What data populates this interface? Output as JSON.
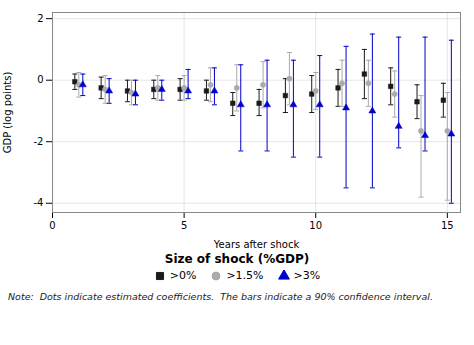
{
  "chart_data": {
    "type": "errorbar",
    "x": [
      1,
      2,
      3,
      4,
      5,
      6,
      7,
      8,
      9,
      10,
      11,
      12,
      13,
      14,
      15
    ],
    "series": [
      {
        "name": ">0%",
        "color": "#1a1a1a",
        "marker": "square",
        "values": [
          -0.05,
          -0.25,
          -0.35,
          -0.3,
          -0.3,
          -0.35,
          -0.75,
          -0.75,
          -0.5,
          -0.45,
          -0.25,
          0.2,
          -0.2,
          -0.7,
          -0.65
        ],
        "lower": [
          -0.3,
          -0.6,
          -0.7,
          -0.6,
          -0.65,
          -0.65,
          -1.15,
          -1.15,
          -1.05,
          -1.05,
          -0.85,
          -0.6,
          -0.8,
          -1.25,
          -1.2
        ],
        "upper": [
          0.2,
          0.1,
          0.0,
          0.0,
          0.05,
          0.0,
          -0.4,
          -0.3,
          0.05,
          0.15,
          0.35,
          1.0,
          0.4,
          -0.15,
          -0.1
        ]
      },
      {
        "name": ">1.5%",
        "color": "#aaaaaa",
        "marker": "circle",
        "values": [
          -0.15,
          -0.3,
          -0.4,
          -0.25,
          -0.25,
          -0.15,
          -0.25,
          -0.15,
          0.05,
          -0.35,
          -0.1,
          -0.1,
          -0.45,
          -1.65,
          -1.65
        ],
        "lower": [
          -0.55,
          -0.75,
          -0.8,
          -0.65,
          -0.65,
          -0.7,
          -1.0,
          -0.9,
          -0.8,
          -0.95,
          -0.85,
          -0.85,
          -1.2,
          -3.8,
          -3.9
        ],
        "upper": [
          0.25,
          0.15,
          0.0,
          0.15,
          0.15,
          0.4,
          0.5,
          0.6,
          0.9,
          0.25,
          0.65,
          0.65,
          0.3,
          -0.5,
          -0.4
        ]
      },
      {
        "name": ">3%",
        "color": "#0000cc",
        "marker": "triangle",
        "values": [
          -0.15,
          -0.35,
          -0.45,
          -0.3,
          -0.35,
          -0.35,
          -0.8,
          -0.8,
          -0.8,
          -0.8,
          -0.9,
          -1.0,
          -1.5,
          -1.8,
          -1.75
        ],
        "lower": [
          -0.5,
          -0.75,
          -0.8,
          -0.65,
          -0.6,
          -0.8,
          -2.3,
          -2.3,
          -2.5,
          -2.5,
          -3.5,
          -3.5,
          -2.2,
          -2.3,
          -4.0
        ],
        "upper": [
          0.2,
          0.05,
          0.0,
          0.0,
          0.35,
          0.4,
          0.5,
          0.65,
          0.65,
          0.8,
          1.1,
          1.5,
          1.4,
          1.4,
          1.3
        ]
      }
    ],
    "xlabel": "Years after shock",
    "ylabel": "GDP (log points)",
    "xlim": [
      0,
      15.5
    ],
    "xticks": [
      0,
      5,
      10,
      15
    ],
    "ylim": [
      -4.3,
      2.2
    ],
    "yticks": [
      -4,
      -2,
      0,
      2
    ],
    "grid": true,
    "legend": "bottom",
    "legend_title": "Size of shock (%GDP)",
    "annotations": [
      "Note:  Dots indicate estimated coefficients.  The bars indicate a 90% confidence interval."
    ]
  }
}
